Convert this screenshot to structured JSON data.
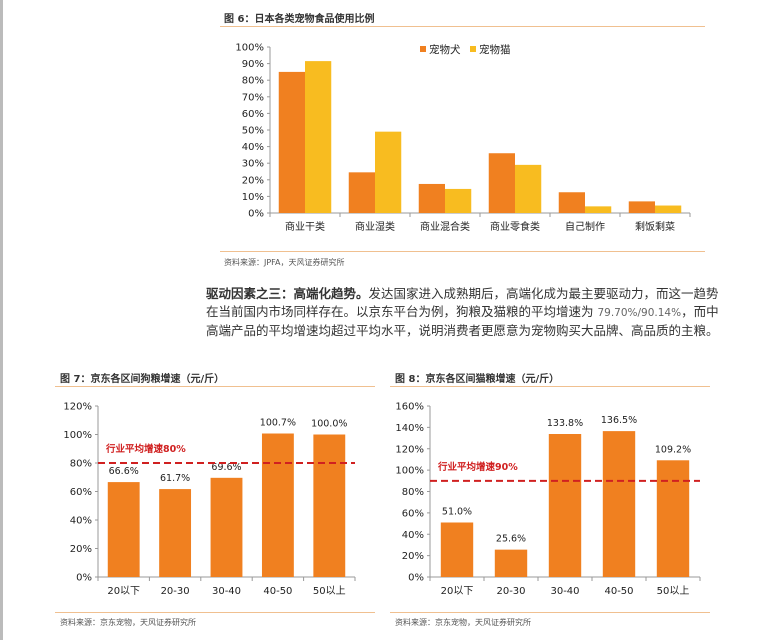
{
  "paragraph": {
    "bold": "驱动因素之三：高端化趋势。",
    "text1": "发达国家进入成熟期后，高端化成为最主要驱动力，而这一趋势在当前国内市场同样存在。以京东平台为例，狗粮及猫粮的平均增速为 ",
    "nums": "79.70%/90.14%",
    "text2": "，而中高端产品的平均增速均超过平均水平，说明消费者更愿意为宠物购买大品牌、高品质的主粮。"
  },
  "chart_data": [
    {
      "type": "bar",
      "title": "图 6：日本各类宠物食品使用比例",
      "source": "资料来源：JPFA，天风证券研究所",
      "categories": [
        "商业干类",
        "商业湿类",
        "商业混合类",
        "商业零食类",
        "自己制作",
        "剩饭剩菜"
      ],
      "series": [
        {
          "name": "宠物犬",
          "color": "#F08020",
          "values": [
            85,
            24.5,
            17.5,
            36,
            12.5,
            7
          ]
        },
        {
          "name": "宠物猫",
          "color": "#F8BC20",
          "values": [
            91.5,
            49,
            14.5,
            29,
            4,
            4.5
          ]
        }
      ],
      "ylim": [
        0,
        100
      ],
      "yticks": [
        "0%",
        "10%",
        "20%",
        "30%",
        "40%",
        "50%",
        "60%",
        "70%",
        "80%",
        "90%",
        "100%"
      ],
      "legend": "top-center"
    },
    {
      "type": "bar",
      "title": "图 7：京东各区间狗粮增速（元/斤）",
      "source": "资料来源：京东宠物，天风证券研究所",
      "categories": [
        "20以下",
        "20-30",
        "30-40",
        "40-50",
        "50以上"
      ],
      "values": [
        66.6,
        61.7,
        69.6,
        100.7,
        100.0
      ],
      "labels": [
        "66.6%",
        "61.7%",
        "69.6%",
        "100.7%",
        "100.0%"
      ],
      "color": "#F08020",
      "ylim": [
        0,
        120
      ],
      "yticks": [
        "0%",
        "20%",
        "40%",
        "60%",
        "80%",
        "100%",
        "120%"
      ],
      "refline": {
        "value": 80,
        "label": "行业平均增速80%",
        "color": "#D02020"
      }
    },
    {
      "type": "bar",
      "title": "图 8：京东各区间猫粮增速（元/斤）",
      "source": "资料来源：京东宠物，天风证券研究所",
      "categories": [
        "20以下",
        "20-30",
        "30-40",
        "40-50",
        "50以上"
      ],
      "values": [
        51.0,
        25.6,
        133.8,
        136.5,
        109.2
      ],
      "labels": [
        "51.0%",
        "25.6%",
        "133.8%",
        "136.5%",
        "109.2%"
      ],
      "color": "#F08020",
      "ylim": [
        0,
        160
      ],
      "yticks": [
        "0%",
        "20%",
        "40%",
        "60%",
        "80%",
        "100%",
        "120%",
        "140%",
        "160%"
      ],
      "refline": {
        "value": 90,
        "label": "行业平均增速90%",
        "color": "#D02020"
      }
    }
  ]
}
